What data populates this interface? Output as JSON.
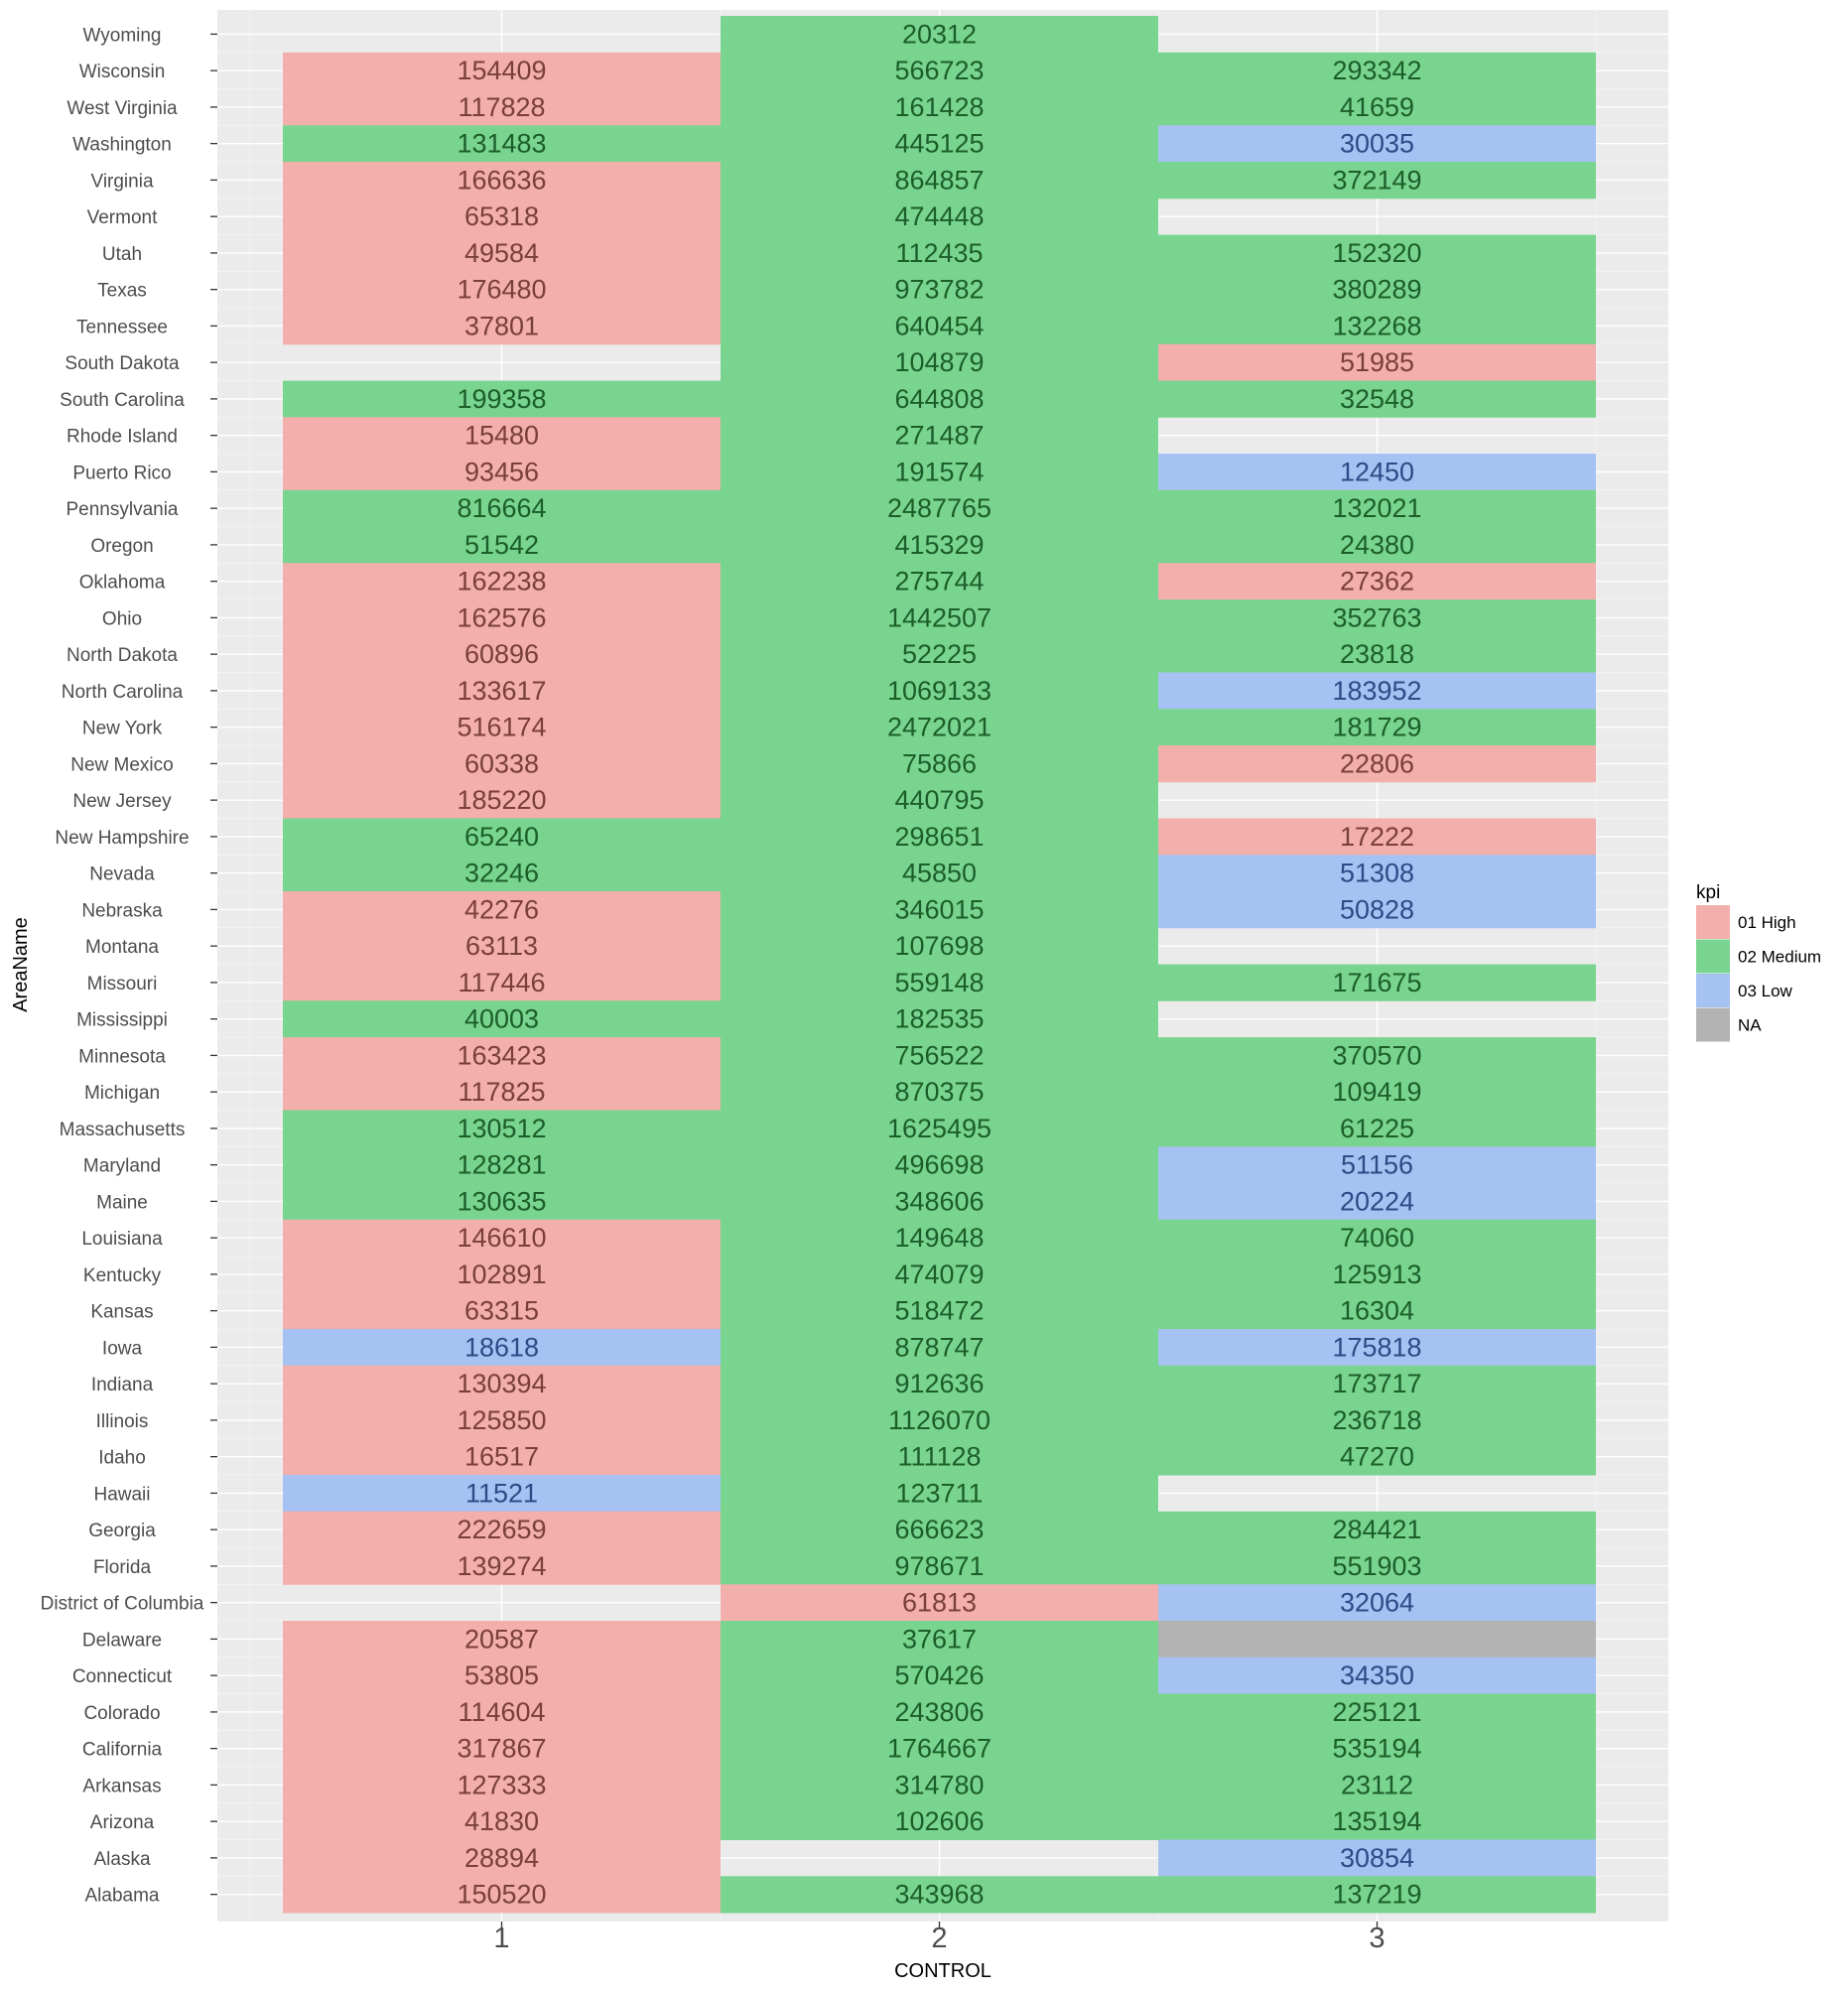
{
  "chart_data": {
    "type": "heatmap",
    "xlabel": "CONTROL",
    "ylabel": "AreaName",
    "x_categories": [
      "1",
      "2",
      "3"
    ],
    "y_categories": [
      "Wyoming",
      "Wisconsin",
      "West Virginia",
      "Washington",
      "Virginia",
      "Vermont",
      "Utah",
      "Texas",
      "Tennessee",
      "South Dakota",
      "South Carolina",
      "Rhode Island",
      "Puerto Rico",
      "Pennsylvania",
      "Oregon",
      "Oklahoma",
      "Ohio",
      "North Dakota",
      "North Carolina",
      "New York",
      "New Mexico",
      "New Jersey",
      "New Hampshire",
      "Nevada",
      "Nebraska",
      "Montana",
      "Missouri",
      "Mississippi",
      "Minnesota",
      "Michigan",
      "Massachusetts",
      "Maryland",
      "Maine",
      "Louisiana",
      "Kentucky",
      "Kansas",
      "Iowa",
      "Indiana",
      "Illinois",
      "Idaho",
      "Hawaii",
      "Georgia",
      "Florida",
      "District of Columbia",
      "Delaware",
      "Connecticut",
      "Colorado",
      "California",
      "Arkansas",
      "Arizona",
      "Alaska",
      "Alabama"
    ],
    "legend": {
      "title": "kpi",
      "position": "right",
      "items": [
        {
          "label": "01 High",
          "color": "#F2AFAB"
        },
        {
          "label": "02 Medium",
          "color": "#79D48F"
        },
        {
          "label": "03 Low",
          "color": "#A6C2F2"
        },
        {
          "label": "NA",
          "color": "#B3B3B3"
        }
      ]
    },
    "text_colors": {
      "01 High": "#7A3F3B",
      "02 Medium": "#1B5E2A",
      "03 Low": "#2E4A87",
      "NA": "#333333"
    },
    "background": "#EBEBEB",
    "grid": true,
    "cells": [
      [
        "Wyoming",
        "2",
        20312,
        "02 Medium"
      ],
      [
        "Wisconsin",
        "1",
        154409,
        "01 High"
      ],
      [
        "Wisconsin",
        "2",
        566723,
        "02 Medium"
      ],
      [
        "Wisconsin",
        "3",
        293342,
        "02 Medium"
      ],
      [
        "West Virginia",
        "1",
        117828,
        "01 High"
      ],
      [
        "West Virginia",
        "2",
        161428,
        "02 Medium"
      ],
      [
        "West Virginia",
        "3",
        41659,
        "02 Medium"
      ],
      [
        "Washington",
        "1",
        131483,
        "02 Medium"
      ],
      [
        "Washington",
        "2",
        445125,
        "02 Medium"
      ],
      [
        "Washington",
        "3",
        30035,
        "03 Low"
      ],
      [
        "Virginia",
        "1",
        166636,
        "01 High"
      ],
      [
        "Virginia",
        "2",
        864857,
        "02 Medium"
      ],
      [
        "Virginia",
        "3",
        372149,
        "02 Medium"
      ],
      [
        "Vermont",
        "1",
        65318,
        "01 High"
      ],
      [
        "Vermont",
        "2",
        474448,
        "02 Medium"
      ],
      [
        "Utah",
        "1",
        49584,
        "01 High"
      ],
      [
        "Utah",
        "2",
        112435,
        "02 Medium"
      ],
      [
        "Utah",
        "3",
        152320,
        "02 Medium"
      ],
      [
        "Texas",
        "1",
        176480,
        "01 High"
      ],
      [
        "Texas",
        "2",
        973782,
        "02 Medium"
      ],
      [
        "Texas",
        "3",
        380289,
        "02 Medium"
      ],
      [
        "Tennessee",
        "1",
        37801,
        "01 High"
      ],
      [
        "Tennessee",
        "2",
        640454,
        "02 Medium"
      ],
      [
        "Tennessee",
        "3",
        132268,
        "02 Medium"
      ],
      [
        "South Dakota",
        "2",
        104879,
        "02 Medium"
      ],
      [
        "South Dakota",
        "3",
        51985,
        "01 High"
      ],
      [
        "South Carolina",
        "1",
        199358,
        "02 Medium"
      ],
      [
        "South Carolina",
        "2",
        644808,
        "02 Medium"
      ],
      [
        "South Carolina",
        "3",
        32548,
        "02 Medium"
      ],
      [
        "Rhode Island",
        "1",
        15480,
        "01 High"
      ],
      [
        "Rhode Island",
        "2",
        271487,
        "02 Medium"
      ],
      [
        "Puerto Rico",
        "1",
        93456,
        "01 High"
      ],
      [
        "Puerto Rico",
        "2",
        191574,
        "02 Medium"
      ],
      [
        "Puerto Rico",
        "3",
        12450,
        "03 Low"
      ],
      [
        "Pennsylvania",
        "1",
        816664,
        "02 Medium"
      ],
      [
        "Pennsylvania",
        "2",
        2487765,
        "02 Medium"
      ],
      [
        "Pennsylvania",
        "3",
        132021,
        "02 Medium"
      ],
      [
        "Oregon",
        "1",
        51542,
        "02 Medium"
      ],
      [
        "Oregon",
        "2",
        415329,
        "02 Medium"
      ],
      [
        "Oregon",
        "3",
        24380,
        "02 Medium"
      ],
      [
        "Oklahoma",
        "1",
        162238,
        "01 High"
      ],
      [
        "Oklahoma",
        "2",
        275744,
        "02 Medium"
      ],
      [
        "Oklahoma",
        "3",
        27362,
        "01 High"
      ],
      [
        "Ohio",
        "1",
        162576,
        "01 High"
      ],
      [
        "Ohio",
        "2",
        1442507,
        "02 Medium"
      ],
      [
        "Ohio",
        "3",
        352763,
        "02 Medium"
      ],
      [
        "North Dakota",
        "1",
        60896,
        "01 High"
      ],
      [
        "North Dakota",
        "2",
        52225,
        "02 Medium"
      ],
      [
        "North Dakota",
        "3",
        23818,
        "02 Medium"
      ],
      [
        "North Carolina",
        "1",
        133617,
        "01 High"
      ],
      [
        "North Carolina",
        "2",
        1069133,
        "02 Medium"
      ],
      [
        "North Carolina",
        "3",
        183952,
        "03 Low"
      ],
      [
        "New York",
        "1",
        516174,
        "01 High"
      ],
      [
        "New York",
        "2",
        2472021,
        "02 Medium"
      ],
      [
        "New York",
        "3",
        181729,
        "02 Medium"
      ],
      [
        "New Mexico",
        "1",
        60338,
        "01 High"
      ],
      [
        "New Mexico",
        "2",
        75866,
        "02 Medium"
      ],
      [
        "New Mexico",
        "3",
        22806,
        "01 High"
      ],
      [
        "New Jersey",
        "1",
        185220,
        "01 High"
      ],
      [
        "New Jersey",
        "2",
        440795,
        "02 Medium"
      ],
      [
        "New Hampshire",
        "1",
        65240,
        "02 Medium"
      ],
      [
        "New Hampshire",
        "2",
        298651,
        "02 Medium"
      ],
      [
        "New Hampshire",
        "3",
        17222,
        "01 High"
      ],
      [
        "Nevada",
        "1",
        32246,
        "02 Medium"
      ],
      [
        "Nevada",
        "2",
        45850,
        "02 Medium"
      ],
      [
        "Nevada",
        "3",
        51308,
        "03 Low"
      ],
      [
        "Nebraska",
        "1",
        42276,
        "01 High"
      ],
      [
        "Nebraska",
        "2",
        346015,
        "02 Medium"
      ],
      [
        "Nebraska",
        "3",
        50828,
        "03 Low"
      ],
      [
        "Montana",
        "1",
        63113,
        "01 High"
      ],
      [
        "Montana",
        "2",
        107698,
        "02 Medium"
      ],
      [
        "Missouri",
        "1",
        117446,
        "01 High"
      ],
      [
        "Missouri",
        "2",
        559148,
        "02 Medium"
      ],
      [
        "Missouri",
        "3",
        171675,
        "02 Medium"
      ],
      [
        "Mississippi",
        "1",
        40003,
        "02 Medium"
      ],
      [
        "Mississippi",
        "2",
        182535,
        "02 Medium"
      ],
      [
        "Minnesota",
        "1",
        163423,
        "01 High"
      ],
      [
        "Minnesota",
        "2",
        756522,
        "02 Medium"
      ],
      [
        "Minnesota",
        "3",
        370570,
        "02 Medium"
      ],
      [
        "Michigan",
        "1",
        117825,
        "01 High"
      ],
      [
        "Michigan",
        "2",
        870375,
        "02 Medium"
      ],
      [
        "Michigan",
        "3",
        109419,
        "02 Medium"
      ],
      [
        "Massachusetts",
        "1",
        130512,
        "02 Medium"
      ],
      [
        "Massachusetts",
        "2",
        1625495,
        "02 Medium"
      ],
      [
        "Massachusetts",
        "3",
        61225,
        "02 Medium"
      ],
      [
        "Maryland",
        "1",
        128281,
        "02 Medium"
      ],
      [
        "Maryland",
        "2",
        496698,
        "02 Medium"
      ],
      [
        "Maryland",
        "3",
        51156,
        "03 Low"
      ],
      [
        "Maine",
        "1",
        130635,
        "02 Medium"
      ],
      [
        "Maine",
        "2",
        348606,
        "02 Medium"
      ],
      [
        "Maine",
        "3",
        20224,
        "03 Low"
      ],
      [
        "Louisiana",
        "1",
        146610,
        "01 High"
      ],
      [
        "Louisiana",
        "2",
        149648,
        "02 Medium"
      ],
      [
        "Louisiana",
        "3",
        74060,
        "02 Medium"
      ],
      [
        "Kentucky",
        "1",
        102891,
        "01 High"
      ],
      [
        "Kentucky",
        "2",
        474079,
        "02 Medium"
      ],
      [
        "Kentucky",
        "3",
        125913,
        "02 Medium"
      ],
      [
        "Kansas",
        "1",
        63315,
        "01 High"
      ],
      [
        "Kansas",
        "2",
        518472,
        "02 Medium"
      ],
      [
        "Kansas",
        "3",
        16304,
        "02 Medium"
      ],
      [
        "Iowa",
        "1",
        18618,
        "03 Low"
      ],
      [
        "Iowa",
        "2",
        878747,
        "02 Medium"
      ],
      [
        "Iowa",
        "3",
        175818,
        "03 Low"
      ],
      [
        "Indiana",
        "1",
        130394,
        "01 High"
      ],
      [
        "Indiana",
        "2",
        912636,
        "02 Medium"
      ],
      [
        "Indiana",
        "3",
        173717,
        "02 Medium"
      ],
      [
        "Illinois",
        "1",
        125850,
        "01 High"
      ],
      [
        "Illinois",
        "2",
        1126070,
        "02 Medium"
      ],
      [
        "Illinois",
        "3",
        236718,
        "02 Medium"
      ],
      [
        "Idaho",
        "1",
        16517,
        "01 High"
      ],
      [
        "Idaho",
        "2",
        111128,
        "02 Medium"
      ],
      [
        "Idaho",
        "3",
        47270,
        "02 Medium"
      ],
      [
        "Hawaii",
        "1",
        11521,
        "03 Low"
      ],
      [
        "Hawaii",
        "2",
        123711,
        "02 Medium"
      ],
      [
        "Georgia",
        "1",
        222659,
        "01 High"
      ],
      [
        "Georgia",
        "2",
        666623,
        "02 Medium"
      ],
      [
        "Georgia",
        "3",
        284421,
        "02 Medium"
      ],
      [
        "Florida",
        "1",
        139274,
        "01 High"
      ],
      [
        "Florida",
        "2",
        978671,
        "02 Medium"
      ],
      [
        "Florida",
        "3",
        551903,
        "02 Medium"
      ],
      [
        "District of Columbia",
        "2",
        61813,
        "01 High"
      ],
      [
        "District of Columbia",
        "3",
        32064,
        "03 Low"
      ],
      [
        "Delaware",
        "1",
        20587,
        "01 High"
      ],
      [
        "Delaware",
        "2",
        37617,
        "02 Medium"
      ],
      [
        "Delaware",
        "3",
        null,
        "NA"
      ],
      [
        "Connecticut",
        "1",
        53805,
        "01 High"
      ],
      [
        "Connecticut",
        "2",
        570426,
        "02 Medium"
      ],
      [
        "Connecticut",
        "3",
        34350,
        "03 Low"
      ],
      [
        "Colorado",
        "1",
        114604,
        "01 High"
      ],
      [
        "Colorado",
        "2",
        243806,
        "02 Medium"
      ],
      [
        "Colorado",
        "3",
        225121,
        "02 Medium"
      ],
      [
        "California",
        "1",
        317867,
        "01 High"
      ],
      [
        "California",
        "2",
        1764667,
        "02 Medium"
      ],
      [
        "California",
        "3",
        535194,
        "02 Medium"
      ],
      [
        "Arkansas",
        "1",
        127333,
        "01 High"
      ],
      [
        "Arkansas",
        "2",
        314780,
        "02 Medium"
      ],
      [
        "Arkansas",
        "3",
        23112,
        "02 Medium"
      ],
      [
        "Arizona",
        "1",
        41830,
        "01 High"
      ],
      [
        "Arizona",
        "2",
        102606,
        "02 Medium"
      ],
      [
        "Arizona",
        "3",
        135194,
        "02 Medium"
      ],
      [
        "Alaska",
        "1",
        28894,
        "01 High"
      ],
      [
        "Alaska",
        "3",
        30854,
        "03 Low"
      ],
      [
        "Alabama",
        "1",
        150520,
        "01 High"
      ],
      [
        "Alabama",
        "2",
        343968,
        "02 Medium"
      ],
      [
        "Alabama",
        "3",
        137219,
        "02 Medium"
      ]
    ]
  }
}
